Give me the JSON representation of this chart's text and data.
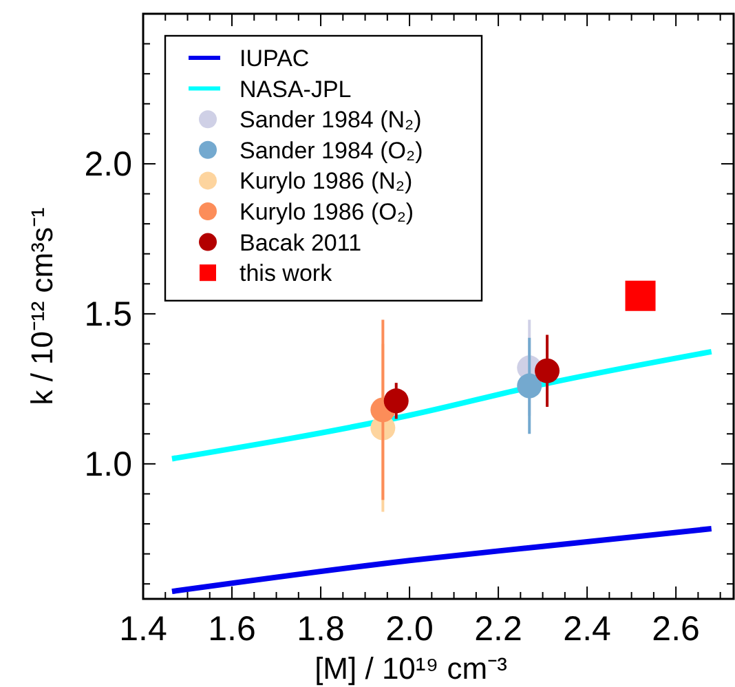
{
  "chart_data": {
    "type": "scatter",
    "xlabel": "[M] / 10¹⁹ cm⁻³",
    "ylabel": "k / 10⁻¹² cm³s⁻¹",
    "xlim": [
      1.4,
      2.73
    ],
    "ylim": [
      0.55,
      2.5
    ],
    "xticks": [
      1.4,
      {
        "value": 1.45,
        "label": null
      },
      1.6,
      {
        "value": 1.5,
        "label": null
      },
      {
        "value": 1.55,
        "label": null
      },
      {
        "value": 1.65,
        "label": null
      },
      {
        "value": 1.7,
        "label": null
      },
      {
        "value": 1.75,
        "label": null
      },
      1.8,
      {
        "value": 1.85,
        "label": null
      },
      {
        "value": 1.9,
        "label": null
      },
      {
        "value": 1.95,
        "label": null
      },
      {
        "value": 2,
        "label": "2.0"
      },
      {
        "value": 2.05,
        "label": null
      },
      {
        "value": 2.1,
        "label": null
      },
      {
        "value": 2.15,
        "label": null
      },
      2.2,
      {
        "value": 2.25,
        "label": null
      },
      {
        "value": 2.3,
        "label": null
      },
      {
        "value": 2.35,
        "label": null
      },
      2.4,
      {
        "value": 2.45,
        "label": null
      },
      {
        "value": 2.5,
        "label": null
      },
      {
        "value": 2.55,
        "label": null
      },
      2.6,
      {
        "value": 2.65,
        "label": null
      },
      {
        "value": 2.7,
        "label": null
      }
    ],
    "yticks": [
      {
        "value": 0.6,
        "label": null
      },
      {
        "value": 0.7,
        "label": null
      },
      {
        "value": 0.8,
        "label": null
      },
      {
        "value": 0.9,
        "label": null
      },
      {
        "value": 1,
        "label": "1.0"
      },
      {
        "value": 1.1,
        "label": null
      },
      {
        "value": 1.2,
        "label": null
      },
      {
        "value": 1.3,
        "label": null
      },
      {
        "value": 1.4,
        "label": null
      },
      1.5,
      {
        "value": 1.6,
        "label": null
      },
      {
        "value": 1.7,
        "label": null
      },
      {
        "value": 1.8,
        "label": null
      },
      {
        "value": 1.9,
        "label": null
      },
      {
        "value": 2,
        "label": "2.0"
      },
      {
        "value": 2.1,
        "label": null
      },
      {
        "value": 2.2,
        "label": null
      },
      {
        "value": 2.3,
        "label": null
      },
      {
        "value": 2.4,
        "label": null
      }
    ],
    "grid": false,
    "legend": "top left",
    "series": [
      {
        "name": "IUPAC",
        "type": "line",
        "color": "#0000ee",
        "x": [
          1.465,
          2.0,
          2.3,
          2.68
        ],
        "values": [
          0.575,
          0.678,
          0.725,
          0.784
        ]
      },
      {
        "name": "NASA-JPL",
        "type": "line",
        "color": "#00ffff",
        "x": [
          1.465,
          2.0,
          2.3,
          2.68
        ],
        "values": [
          1.017,
          1.162,
          1.265,
          1.374
        ]
      },
      {
        "name": "Sander 1984 (N₂)",
        "marker": "circle",
        "color": "#cfd0e6",
        "x": [
          2.27
        ],
        "values": [
          1.32
        ],
        "errors": [
          [
            1.16,
            1.48
          ]
        ]
      },
      {
        "name": "Sander 1984 (O₂)",
        "marker": "circle",
        "color": "#74a9cf",
        "x": [
          2.27
        ],
        "values": [
          1.26
        ],
        "errors": [
          [
            1.1,
            1.42
          ]
        ]
      },
      {
        "name": "Kurylo 1986 (N₂)",
        "marker": "circle",
        "color": "#fdd49e",
        "x": [
          1.94
        ],
        "values": [
          1.12
        ],
        "errors": [
          [
            0.84,
            1.4
          ]
        ]
      },
      {
        "name": "Kurylo 1986 (O₂)",
        "marker": "circle",
        "color": "#fc8d59",
        "x": [
          1.94
        ],
        "values": [
          1.18
        ],
        "errors": [
          [
            0.88,
            1.48
          ]
        ]
      },
      {
        "name": "Bacak 2011",
        "marker": "circle",
        "color": "#b30000",
        "x": [
          1.97,
          2.31
        ],
        "values": [
          1.21,
          1.31
        ],
        "errors": [
          [
            1.15,
            1.27
          ],
          [
            1.19,
            1.43
          ]
        ]
      },
      {
        "name": "this work",
        "marker": "square",
        "color": "#ff0000",
        "x": [
          2.52
        ],
        "values": [
          1.56
        ]
      }
    ]
  }
}
